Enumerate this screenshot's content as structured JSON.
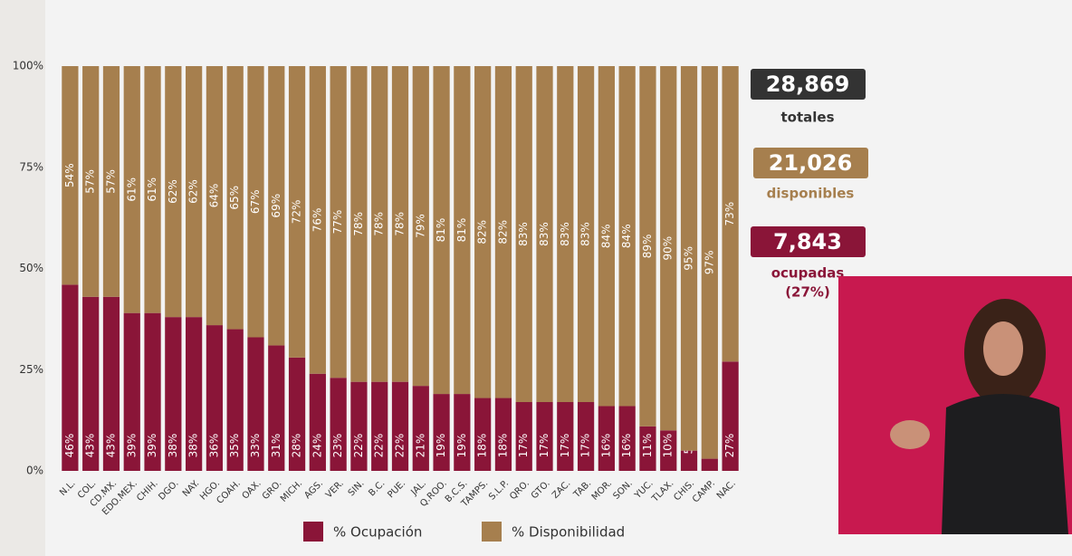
{
  "chart_data": {
    "type": "stacked_bar",
    "categories": [
      "N.L.",
      "COL.",
      "CD.MX.",
      "EDO.MEX.",
      "CHIH.",
      "DGO.",
      "NAY.",
      "HGO.",
      "COAH.",
      "OAX.",
      "GRO.",
      "MICH.",
      "AGS.",
      "VER.",
      "SIN.",
      "B.C.",
      "PUE.",
      "JAL.",
      "Q.ROO.",
      "B.C.S.",
      "TAMPS.",
      "S.L.P.",
      "QRO.",
      "GTO.",
      "ZAC.",
      "TAB.",
      "MOR.",
      "SON.",
      "YUC.",
      "TLAX.",
      "CHIS.",
      "CAMP.",
      "NAC."
    ],
    "series": [
      {
        "name": "% Ocupación",
        "color": "#8a1538",
        "values": [
          46,
          43,
          43,
          39,
          39,
          38,
          38,
          36,
          35,
          33,
          31,
          28,
          24,
          23,
          22,
          22,
          22,
          21,
          19,
          19,
          18,
          18,
          17,
          17,
          17,
          17,
          16,
          16,
          11,
          10,
          5,
          3,
          27
        ],
        "value_labels": [
          "46%",
          "43%",
          "43%",
          "39%",
          "39%",
          "38%",
          "38%",
          "36%",
          "35%",
          "33%",
          "31%",
          "28%",
          "24%",
          "23%",
          "22%",
          "22%",
          "22%",
          "21%",
          "19%",
          "19%",
          "18%",
          "18%",
          "17%",
          "17%",
          "17%",
          "17%",
          "16%",
          "16%",
          "11%",
          "10%",
          "5%",
          "3%",
          "27%"
        ]
      },
      {
        "name": "% Disponibilidad",
        "color": "#a67f4e",
        "values": [
          54,
          57,
          57,
          61,
          61,
          62,
          62,
          64,
          65,
          67,
          69,
          72,
          76,
          77,
          78,
          78,
          78,
          79,
          81,
          81,
          82,
          82,
          83,
          83,
          83,
          83,
          84,
          84,
          89,
          90,
          95,
          97,
          73
        ],
        "value_labels": [
          "54%",
          "57%",
          "57%",
          "61%",
          "61%",
          "62%",
          "62%",
          "64%",
          "65%",
          "67%",
          "69%",
          "72%",
          "76%",
          "77%",
          "78%",
          "78%",
          "78%",
          "79%",
          "81%",
          "81%",
          "82%",
          "82%",
          "83%",
          "83%",
          "83%",
          "83%",
          "84%",
          "84%",
          "89%",
          "90%",
          "95%",
          "97%",
          "73%"
        ]
      }
    ],
    "ylim": [
      0,
      100
    ],
    "yticks": [
      {
        "value": 0,
        "label": "0%"
      },
      {
        "value": 25,
        "label": "25%"
      },
      {
        "value": 50,
        "label": "50%"
      },
      {
        "value": 75,
        "label": "75%"
      },
      {
        "value": 100,
        "label": "100%"
      }
    ],
    "grid": false,
    "legend": "bottom"
  },
  "panel": {
    "total": "28,869",
    "total_label": "totales",
    "available": "21,026",
    "available_label": "disponibles",
    "occupied": "7,843",
    "occupied_label": "ocupadas",
    "occupied_share": "(27%)"
  }
}
